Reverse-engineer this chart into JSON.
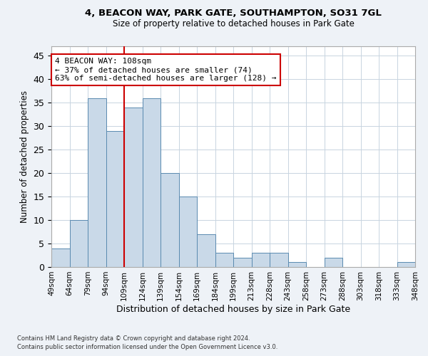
{
  "title": "4, BEACON WAY, PARK GATE, SOUTHAMPTON, SO31 7GL",
  "subtitle": "Size of property relative to detached houses in Park Gate",
  "xlabel": "Distribution of detached houses by size in Park Gate",
  "ylabel": "Number of detached properties",
  "bar_values": [
    4,
    10,
    36,
    29,
    34,
    36,
    20,
    15,
    7,
    3,
    2,
    3,
    3,
    1,
    0,
    2,
    0,
    0,
    0,
    1
  ],
  "bar_labels": [
    "49sqm",
    "64sqm",
    "79sqm",
    "94sqm",
    "109sqm",
    "124sqm",
    "139sqm",
    "154sqm",
    "169sqm",
    "184sqm",
    "199sqm",
    "213sqm",
    "228sqm",
    "243sqm",
    "258sqm",
    "273sqm",
    "288sqm",
    "303sqm",
    "318sqm",
    "333sqm",
    "348sqm"
  ],
  "bar_color": "#c9d9e8",
  "bar_edge_color": "#5a8ab0",
  "property_line_color": "#cc0000",
  "annotation_text": "4 BEACON WAY: 108sqm\n← 37% of detached houses are smaller (74)\n63% of semi-detached houses are larger (128) →",
  "annotation_box_color": "#cc0000",
  "ylim": [
    0,
    47
  ],
  "yticks": [
    0,
    5,
    10,
    15,
    20,
    25,
    30,
    35,
    40,
    45
  ],
  "footnote1": "Contains HM Land Registry data © Crown copyright and database right 2024.",
  "footnote2": "Contains public sector information licensed under the Open Government Licence v3.0.",
  "background_color": "#eef2f7",
  "plot_bg_color": "#ffffff",
  "grid_color": "#c8d4e0"
}
